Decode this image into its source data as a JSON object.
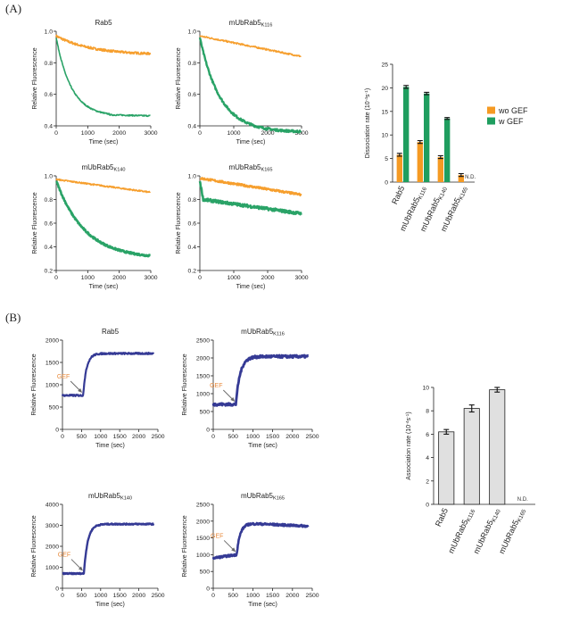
{
  "figure": {
    "panel_a_label": "(A)",
    "panel_b_label": "(B)",
    "gef_annotation": "GEF",
    "colors": {
      "orange": "#f59a23",
      "green": "#1f9e5f",
      "blue": "#2a2f8f",
      "bar_gray": "#e0e0e0"
    }
  },
  "chart_data": [
    {
      "id": "a1",
      "type": "line",
      "title": "Rab5",
      "title_sub": "",
      "xlabel": "Time (sec)",
      "ylabel": "Relative Fluorescence",
      "xlim": [
        0,
        3000
      ],
      "ylim": [
        0.4,
        1.0
      ],
      "xticks": [
        0,
        1000,
        2000,
        3000
      ],
      "yticks": [
        0.4,
        0.6,
        0.8,
        1.0
      ],
      "ytick_labels": [
        "0.4",
        "0.6",
        "0.8",
        "1.0"
      ],
      "series": [
        {
          "name": "wo GEF",
          "color": "#f59a23",
          "model": "exp",
          "y0": 0.97,
          "yinf": 0.85,
          "tau": 1100,
          "noise": 0.007,
          "width": 1.8
        },
        {
          "name": "w GEF",
          "color": "#1f9e5f",
          "model": "exp",
          "y0": 0.96,
          "yinf": 0.46,
          "tau": 480,
          "noise": 0.004,
          "width": 1.6,
          "plateau_at": 1700,
          "plateau_y": 0.47
        }
      ]
    },
    {
      "id": "a2",
      "type": "line",
      "title": "mUbRab5",
      "title_sub": "K116",
      "xlabel": "Time (sec)",
      "ylabel": "Relative Fluorescence",
      "xlim": [
        0,
        3000
      ],
      "ylim": [
        0.4,
        1.0
      ],
      "xticks": [
        0,
        1000,
        2000,
        3000
      ],
      "yticks": [
        0.4,
        0.6,
        0.8,
        1.0
      ],
      "ytick_labels": [
        "0.4",
        "0.6",
        "0.8",
        "1.0"
      ],
      "series": [
        {
          "name": "wo GEF",
          "color": "#f59a23",
          "model": "lin",
          "y0": 0.97,
          "y1": 0.84,
          "noise": 0.005,
          "width": 1.6
        },
        {
          "name": "w GEF",
          "color": "#1f9e5f",
          "model": "exp",
          "y0": 0.96,
          "yinf": 0.36,
          "tau": 600,
          "noise": 0.007,
          "width": 2.4
        }
      ]
    },
    {
      "id": "a3",
      "type": "line",
      "title": "mUbRab5",
      "title_sub": "K140",
      "xlabel": "Time (sec)",
      "ylabel": "Relative Fluorescence",
      "xlim": [
        0,
        3000
      ],
      "ylim": [
        0.2,
        1.0
      ],
      "xticks": [
        0,
        1000,
        2000,
        3000
      ],
      "yticks": [
        0.2,
        0.4,
        0.6,
        0.8,
        1.0
      ],
      "ytick_labels": [
        "0.2",
        "0.4",
        "0.6",
        "0.8",
        "1.0"
      ],
      "series": [
        {
          "name": "wo GEF",
          "color": "#f59a23",
          "model": "lin",
          "y0": 0.97,
          "y1": 0.86,
          "noise": 0.006,
          "width": 1.6
        },
        {
          "name": "w GEF",
          "color": "#1f9e5f",
          "model": "exp",
          "y0": 0.96,
          "yinf": 0.3,
          "tau": 900,
          "noise": 0.008,
          "width": 2.6
        }
      ]
    },
    {
      "id": "a4",
      "type": "line",
      "title": "mUbRab5",
      "title_sub": "K165",
      "xlabel": "Time (sec)",
      "ylabel": "Relative Fluorescence",
      "xlim": [
        0,
        3000
      ],
      "ylim": [
        0.2,
        1.0
      ],
      "xticks": [
        0,
        1000,
        2000,
        3000
      ],
      "yticks": [
        0.2,
        0.4,
        0.6,
        0.8,
        1.0
      ],
      "ytick_labels": [
        "0.2",
        "0.4",
        "0.6",
        "0.8",
        "1.0"
      ],
      "series": [
        {
          "name": "wo GEF",
          "color": "#f59a23",
          "model": "lin",
          "y0": 0.98,
          "y1": 0.84,
          "noise": 0.009,
          "width": 2.2
        },
        {
          "name": "w GEF",
          "color": "#1f9e5f",
          "model": "twophase",
          "y0": 0.96,
          "ydrop": 0.8,
          "tdrop": 100,
          "y1": 0.68,
          "noise": 0.012,
          "width": 2.6
        }
      ]
    },
    {
      "id": "a5",
      "type": "bar",
      "categories": [
        "Rab5",
        "mUbRab5",
        "mUbRab5",
        "mUbRab5"
      ],
      "category_subs": [
        "",
        "K116",
        "K140",
        "K165"
      ],
      "ylabel": "Dissociation rate (10",
      "ylabel_sup": "-4",
      "ylabel_end": "s",
      "ylabel_sup2": "-1",
      "ylabel_close": ")",
      "ylim": [
        0,
        25
      ],
      "yticks": [
        0,
        5,
        10,
        15,
        20,
        25
      ],
      "ytick_labels": [
        "0",
        "5",
        "10",
        "15",
        "20",
        "25"
      ],
      "series": [
        {
          "name": "wo GEF",
          "color": "#f59a23",
          "values": [
            5.8,
            8.5,
            5.3,
            1.5
          ],
          "errors": [
            0.3,
            0.3,
            0.3,
            0.3
          ]
        },
        {
          "name": "w GEF",
          "color": "#1f9e5f",
          "values": [
            20.2,
            18.8,
            13.5,
            null
          ],
          "errors": [
            0.3,
            0.25,
            0.2,
            0
          ]
        }
      ],
      "nd_label": "N.D.",
      "legend_position": "right"
    },
    {
      "id": "b1",
      "type": "line",
      "title": "Rab5",
      "title_sub": "",
      "xlabel": "Time (sec)",
      "ylabel": "Relative Fluorescence",
      "xlim": [
        0,
        2500
      ],
      "ylim": [
        0,
        2000
      ],
      "xticks": [
        0,
        500,
        1000,
        1500,
        2000,
        2500
      ],
      "yticks": [
        0,
        500,
        1000,
        1500,
        2000
      ],
      "ytick_labels": [
        "0",
        "500",
        "1000",
        "1500",
        "2000"
      ],
      "gef_time": 540,
      "series": [
        {
          "name": "association",
          "color": "#2a2f8f",
          "model": "step",
          "base": 760,
          "top": 1700,
          "t0": 540,
          "tau": 90,
          "drift": 0,
          "noise": 18,
          "width": 2.2
        }
      ]
    },
    {
      "id": "b2",
      "type": "line",
      "title": "mUbRab5",
      "title_sub": "K116",
      "xlabel": "Time (sec)",
      "ylabel": "Relative Fluorescence",
      "xlim": [
        0,
        2500
      ],
      "ylim": [
        0,
        2500
      ],
      "xticks": [
        0,
        500,
        1000,
        1500,
        2000,
        2500
      ],
      "yticks": [
        0,
        500,
        1000,
        1500,
        2000,
        2500
      ],
      "ytick_labels": [
        "0",
        "500",
        "1000",
        "1500",
        "2000",
        "2500"
      ],
      "gef_time": 570,
      "series": [
        {
          "name": "association",
          "color": "#2a2f8f",
          "model": "step",
          "base": 700,
          "top": 2040,
          "t0": 570,
          "tau": 110,
          "drift": 0,
          "noise": 35,
          "width": 2.8
        }
      ]
    },
    {
      "id": "b3",
      "type": "line",
      "title": "mUbRab5",
      "title_sub": "K140",
      "xlabel": "Time (sec)",
      "ylabel": "Relative Fluorescence",
      "xlim": [
        0,
        2500
      ],
      "ylim": [
        0,
        4000
      ],
      "xticks": [
        0,
        500,
        1000,
        1500,
        2000,
        2500
      ],
      "yticks": [
        0,
        1000,
        2000,
        3000,
        4000
      ],
      "ytick_labels": [
        "0",
        "1000",
        "2000",
        "3000",
        "4000"
      ],
      "gef_time": 560,
      "series": [
        {
          "name": "association",
          "color": "#2a2f8f",
          "model": "step",
          "base": 700,
          "top": 3060,
          "t0": 560,
          "tau": 100,
          "drift": 0,
          "noise": 30,
          "width": 2.4
        }
      ]
    },
    {
      "id": "b4",
      "type": "line",
      "title": "mUbRab5",
      "title_sub": "K165",
      "xlabel": "Time (sec)",
      "ylabel": "Relative Fluorescence",
      "xlim": [
        0,
        2500
      ],
      "ylim": [
        0,
        2500
      ],
      "xticks": [
        0,
        500,
        1000,
        1500,
        2000,
        2500
      ],
      "yticks": [
        0,
        500,
        1000,
        1500,
        2000,
        2500
      ],
      "ytick_labels": [
        "0",
        "500",
        "1000",
        "1500",
        "2000",
        "2500"
      ],
      "gef_time": 590,
      "series": [
        {
          "name": "association",
          "color": "#2a2f8f",
          "model": "step",
          "base": 900,
          "base_end": 1000,
          "top": 1950,
          "t0": 590,
          "tau": 90,
          "drift": -100,
          "noise": 30,
          "width": 2.6
        }
      ]
    },
    {
      "id": "b5",
      "type": "bar",
      "categories": [
        "Rab5",
        "mUbRab5",
        "mUbRab5",
        "mUbRab5"
      ],
      "category_subs": [
        "",
        "K116",
        "K140",
        "K165"
      ],
      "ylabel": "Association rate (10",
      "ylabel_sup": "-4",
      "ylabel_end": "s",
      "ylabel_sup2": "-1",
      "ylabel_close": ")",
      "ylim": [
        0,
        10
      ],
      "yticks": [
        0,
        2,
        4,
        6,
        8,
        10
      ],
      "ytick_labels": [
        "0",
        "2",
        "4",
        "6",
        "8",
        "10"
      ],
      "series": [
        {
          "name": "association rate",
          "color": "#e0e0e0",
          "values": [
            6.2,
            8.2,
            9.8,
            null
          ],
          "errors": [
            0.2,
            0.3,
            0.2,
            0
          ]
        }
      ],
      "nd_label": "N.D."
    }
  ]
}
